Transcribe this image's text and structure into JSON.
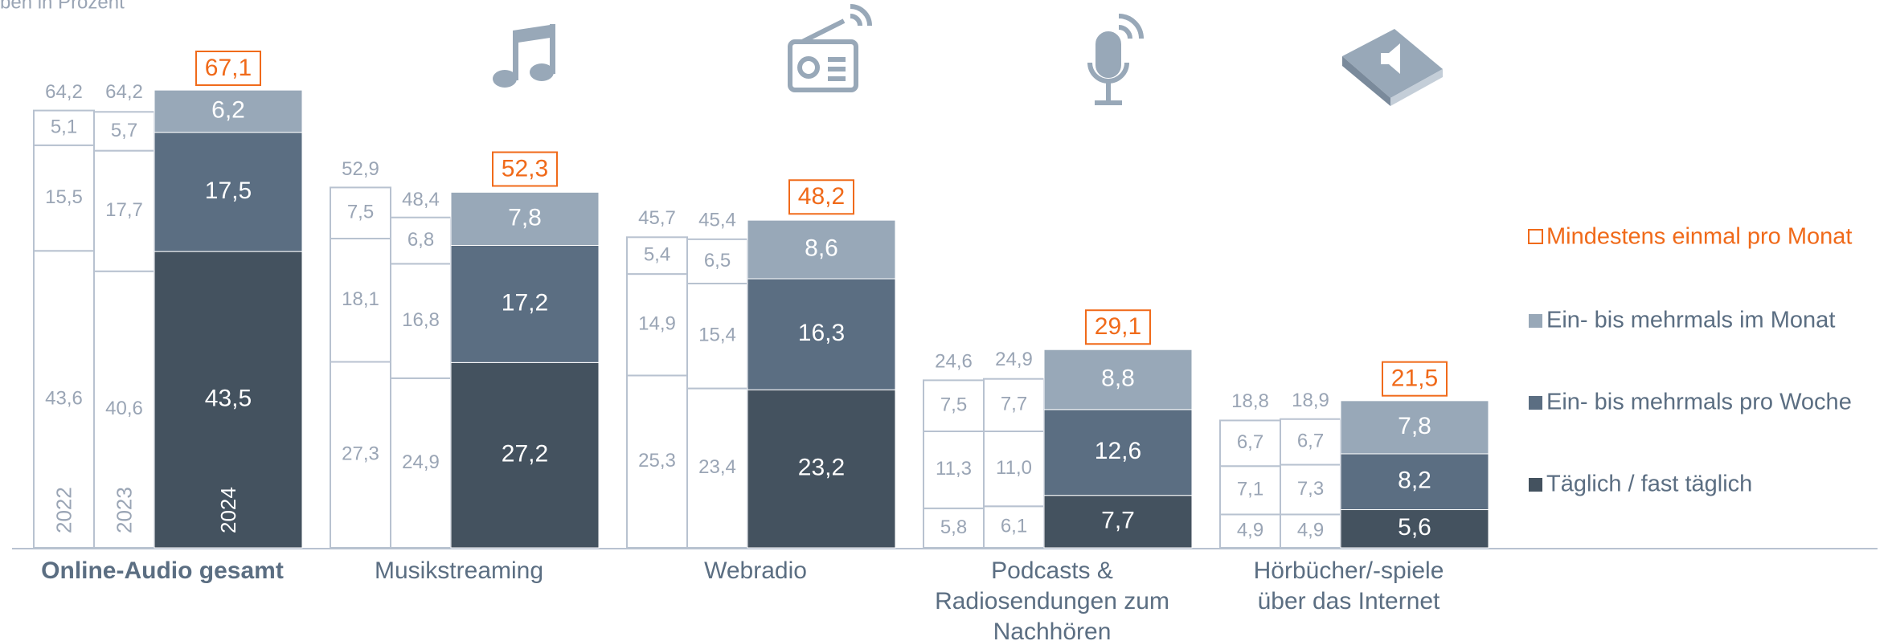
{
  "chart_data": {
    "type": "stacked-bar",
    "subtitle": "ben in Prozent",
    "categories": [
      [
        "Online-Audio gesamt"
      ],
      [
        "Musikstreaming"
      ],
      [
        "Webradio"
      ],
      [
        "Podcasts &",
        "Radiosendungen zum",
        "Nachhören"
      ],
      [
        "Hörbücher/-spiele",
        "über das Internet"
      ]
    ],
    "years": [
      "2022",
      "2023",
      "2024"
    ],
    "series": [
      {
        "name": "Täglich / fast täglich",
        "color": "#44525f",
        "values": [
          [
            43.6,
            40.6,
            43.5
          ],
          [
            27.3,
            24.9,
            27.2
          ],
          [
            25.3,
            23.4,
            23.2
          ],
          [
            5.8,
            6.1,
            7.7
          ],
          [
            4.9,
            4.9,
            5.6
          ]
        ],
        "value_labels": [
          [
            "43,6",
            "40,6",
            "43,5"
          ],
          [
            "27,3",
            "24,9",
            "27,2"
          ],
          [
            "25,3",
            "23,4",
            "23,2"
          ],
          [
            "5,8",
            "6,1",
            "7,7"
          ],
          [
            "4,9",
            "4,9",
            "5,6"
          ]
        ]
      },
      {
        "name": "Ein- bis mehrmals pro Woche",
        "color": "#5b6e82",
        "values": [
          [
            15.5,
            17.7,
            17.5
          ],
          [
            18.1,
            16.8,
            17.2
          ],
          [
            14.9,
            15.4,
            16.3
          ],
          [
            11.3,
            11.0,
            12.6
          ],
          [
            7.1,
            7.3,
            8.2
          ]
        ],
        "value_labels": [
          [
            "15,5",
            "17,7",
            "17,5"
          ],
          [
            "18,1",
            "16,8",
            "17,2"
          ],
          [
            "14,9",
            "15,4",
            "16,3"
          ],
          [
            "11,3",
            "11,0",
            "12,6"
          ],
          [
            "7,1",
            "7,3",
            "8,2"
          ]
        ]
      },
      {
        "name": "Ein- bis mehrmals im Monat",
        "color": "#98a8b8",
        "values": [
          [
            5.1,
            5.7,
            6.2
          ],
          [
            7.5,
            6.8,
            7.8
          ],
          [
            5.4,
            6.5,
            8.6
          ],
          [
            7.5,
            7.7,
            8.8
          ],
          [
            6.7,
            6.7,
            7.8
          ]
        ],
        "value_labels": [
          [
            "5,1",
            "5,7",
            "6,2"
          ],
          [
            "7,5",
            "6,8",
            "7,8"
          ],
          [
            "5,4",
            "6,5",
            "8,6"
          ],
          [
            "7,5",
            "7,7",
            "8,8"
          ],
          [
            "6,7",
            "6,7",
            "7,8"
          ]
        ]
      }
    ],
    "totals": {
      "name": "Mindestens einmal pro Monat",
      "color": "#f06a1a",
      "values": [
        [
          64.2,
          64.2,
          67.1
        ],
        [
          52.9,
          48.4,
          52.3
        ],
        [
          45.7,
          45.4,
          48.2
        ],
        [
          24.6,
          24.9,
          29.1
        ],
        [
          18.8,
          18.9,
          21.5
        ]
      ],
      "value_labels": [
        [
          "64,2",
          "64,2",
          "67,1"
        ],
        [
          "52,9",
          "48,4",
          "52,3"
        ],
        [
          "45,7",
          "45,4",
          "48,2"
        ],
        [
          "24,6",
          "24,9",
          "29,1"
        ],
        [
          "18,8",
          "18,9",
          "21,5"
        ]
      ]
    }
  }
}
